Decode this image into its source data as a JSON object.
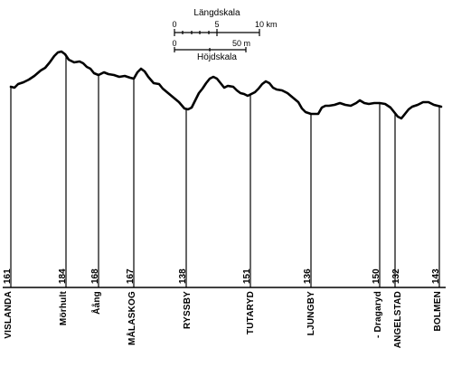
{
  "scale": {
    "length_title": "Längdskala",
    "length_start": "0",
    "length_mid": "5",
    "length_end": "10 km",
    "height_start": "0",
    "height_end": "50 m",
    "height_title": "Höjdskala"
  },
  "stations": [
    {
      "name": "VISLANDA",
      "elevation": "161"
    },
    {
      "name": "Mörhult",
      "elevation": "184"
    },
    {
      "name": "Åång",
      "elevation": "168"
    },
    {
      "name": "MÅLASKOG",
      "elevation": "167"
    },
    {
      "name": "RYSSBY",
      "elevation": "138"
    },
    {
      "name": "TUTARYD",
      "elevation": "151"
    },
    {
      "name": "LJUNGBY",
      "elevation": "136"
    },
    {
      "name": "- Dragaryd",
      "elevation": "150"
    },
    {
      "name": "ANGELSTAD",
      "elevation": "132"
    },
    {
      "name": "BOLMEN",
      "elevation": "143"
    }
  ]
}
